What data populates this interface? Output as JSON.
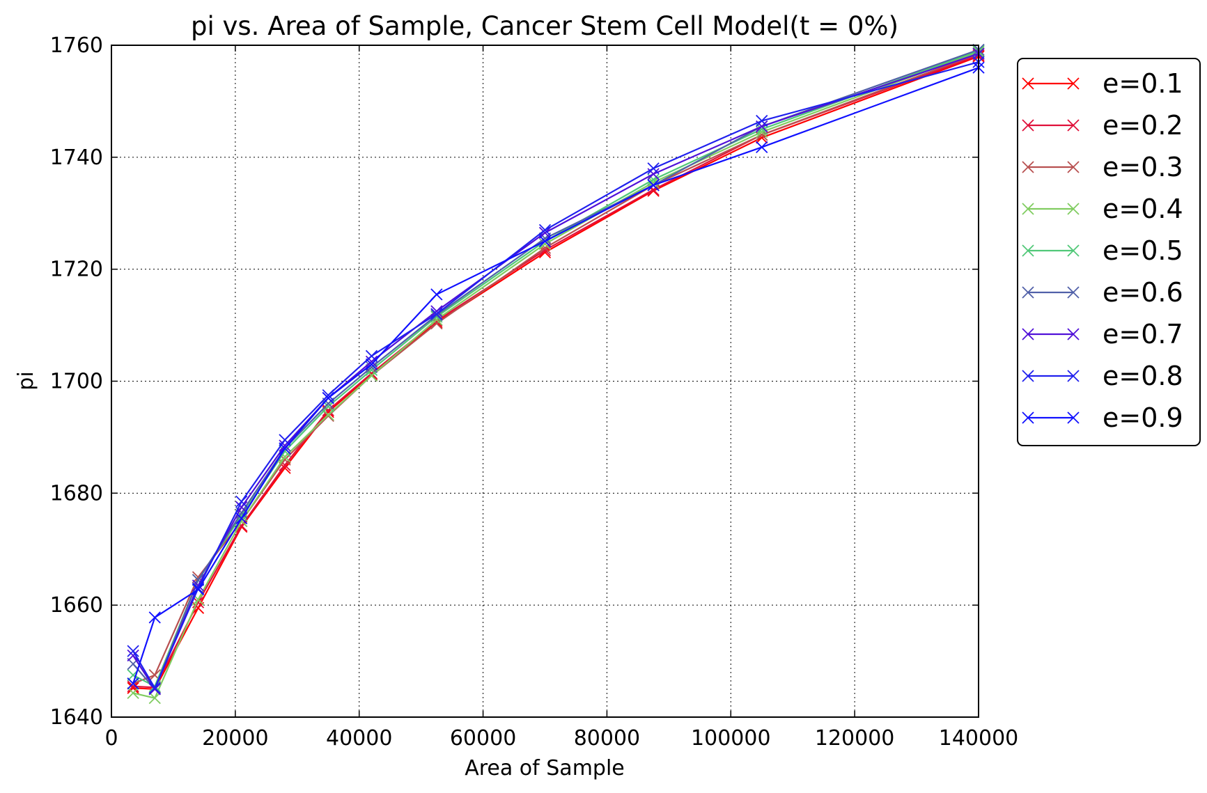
{
  "chart_data": {
    "type": "line",
    "title": "pi vs. Area of Sample, Cancer Stem Cell Model(t = 0%)",
    "xlabel": "Area of Sample",
    "ylabel": "pi",
    "xlim": [
      0,
      140000
    ],
    "ylim": [
      1640,
      1760
    ],
    "xticks": [
      "0",
      "20000",
      "40000",
      "60000",
      "80000",
      "100000",
      "120000",
      "140000"
    ],
    "yticks": [
      "1640",
      "1660",
      "1680",
      "1700",
      "1720",
      "1740",
      "1760"
    ],
    "grid": true,
    "legend_position": "outside-right",
    "marker": "x",
    "x": [
      3500,
      7000,
      14000,
      21000,
      28000,
      35000,
      42000,
      52500,
      70000,
      87500,
      105000,
      140000
    ],
    "series": [
      {
        "name": "e=0.1",
        "color": "#ff0000",
        "values": [
          1645.2,
          1645.0,
          1659.5,
          1674.0,
          1684.5,
          1694.5,
          1701.2,
          1710.5,
          1723.0,
          1734.0,
          1743.5,
          1758.0
        ]
      },
      {
        "name": "e=0.2",
        "color": "#e0103a",
        "values": [
          1645.5,
          1645.3,
          1660.5,
          1674.2,
          1685.0,
          1694.8,
          1701.4,
          1710.8,
          1723.4,
          1734.2,
          1744.0,
          1758.2
        ]
      },
      {
        "name": "e=0.3",
        "color": "#b85050",
        "values": [
          1646.0,
          1647.5,
          1665.0,
          1675.0,
          1686.0,
          1693.8,
          1701.0,
          1710.3,
          1723.8,
          1735.0,
          1744.0,
          1758.5
        ]
      },
      {
        "name": "e=0.4",
        "color": "#80cc60",
        "values": [
          1644.3,
          1643.4,
          1661.0,
          1675.0,
          1686.5,
          1694.0,
          1701.0,
          1711.0,
          1724.5,
          1735.5,
          1744.5,
          1758.8
        ]
      },
      {
        "name": "e=0.5",
        "color": "#50c878",
        "values": [
          1647.5,
          1645.5,
          1664.5,
          1676.0,
          1687.5,
          1695.5,
          1702.0,
          1711.5,
          1725.0,
          1736.0,
          1745.0,
          1759.0
        ]
      },
      {
        "name": "e=0.6",
        "color": "#5060a8",
        "values": [
          1649.5,
          1645.0,
          1664.5,
          1676.5,
          1688.0,
          1696.0,
          1702.5,
          1711.8,
          1725.5,
          1735.0,
          1745.5,
          1759.2
        ]
      },
      {
        "name": "e=0.7",
        "color": "#5010d8",
        "values": [
          1651.0,
          1645.0,
          1663.5,
          1677.5,
          1688.5,
          1697.0,
          1703.5,
          1712.5,
          1726.5,
          1737.0,
          1745.5,
          1758.5
        ]
      },
      {
        "name": "e=0.8",
        "color": "#2020ee",
        "values": [
          1651.8,
          1645.2,
          1663.0,
          1678.5,
          1689.5,
          1697.5,
          1704.5,
          1712.0,
          1727.0,
          1738.0,
          1746.5,
          1757.0
        ]
      },
      {
        "name": "e=0.9",
        "color": "#1010ff",
        "values": [
          1646.0,
          1657.8,
          1662.8,
          1675.5,
          1688.0,
          1697.0,
          1703.0,
          1715.5,
          1725.0,
          1735.0,
          1741.8,
          1756.0
        ]
      }
    ]
  }
}
